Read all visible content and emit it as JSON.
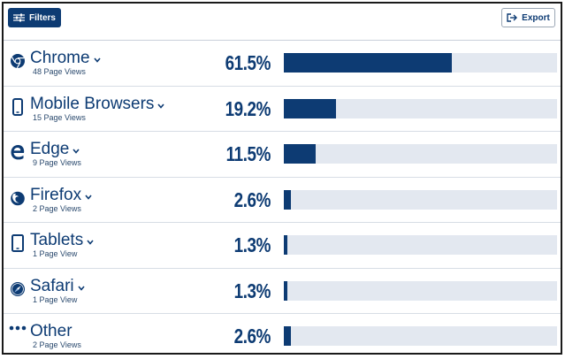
{
  "toolbar": {
    "filters_label": "Filters",
    "export_label": "Export"
  },
  "colors": {
    "brand": "#0d3b73",
    "track": "#e3e8f0"
  },
  "rows": [
    {
      "name": "Chrome",
      "sub": "48 Page Views",
      "pct": "61.5%",
      "value": 61.5,
      "icon": "chrome-icon",
      "has_chevron": true
    },
    {
      "name": "Mobile Browsers",
      "sub": "15 Page Views",
      "pct": "19.2%",
      "value": 19.2,
      "icon": "mobile-phone-icon",
      "has_chevron": true
    },
    {
      "name": "Edge",
      "sub": "9 Page Views",
      "pct": "11.5%",
      "value": 11.5,
      "icon": "edge-icon",
      "has_chevron": true
    },
    {
      "name": "Firefox",
      "sub": "2 Page Views",
      "pct": "2.6%",
      "value": 2.6,
      "icon": "firefox-icon",
      "has_chevron": true
    },
    {
      "name": "Tablets",
      "sub": "1 Page View",
      "pct": "1.3%",
      "value": 1.3,
      "icon": "tablet-icon",
      "has_chevron": true
    },
    {
      "name": "Safari",
      "sub": "1 Page View",
      "pct": "1.3%",
      "value": 1.3,
      "icon": "safari-icon",
      "has_chevron": true
    },
    {
      "name": "Other",
      "sub": "2 Page Views",
      "pct": "2.6%",
      "value": 2.6,
      "icon": "more-dots-icon",
      "has_chevron": false
    }
  ]
}
